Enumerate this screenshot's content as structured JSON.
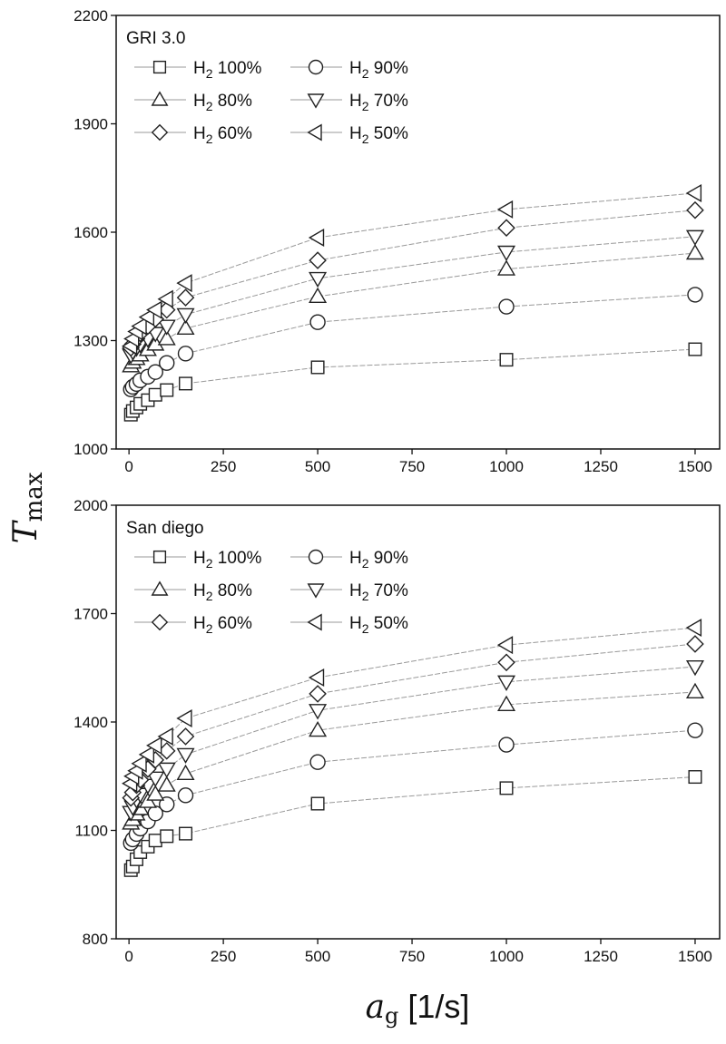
{
  "chart_data": [
    {
      "type": "scatter",
      "title": "GRI 3.0",
      "xlim": [
        -34,
        1565
      ],
      "ylim": [
        1000,
        2200
      ],
      "xticks": [
        0,
        250,
        500,
        750,
        1000,
        1250,
        1500
      ],
      "yticks": [
        1000,
        1300,
        1600,
        1900,
        2200
      ],
      "grid": false,
      "legend_placement": "top-left",
      "x": [
        5,
        10,
        20,
        30,
        50,
        70,
        100,
        150,
        500,
        1000,
        1500
      ],
      "series": [
        {
          "name": "H2 100%",
          "marker": "square",
          "values": [
            1095,
            1105,
            1115,
            1125,
            1135,
            1150,
            1163,
            1181,
            1226,
            1247,
            1276
          ]
        },
        {
          "name": "H2 90%",
          "marker": "circle",
          "values": [
            1165,
            1172,
            1180,
            1190,
            1200,
            1213,
            1238,
            1264,
            1351,
            1394,
            1427
          ]
        },
        {
          "name": "H2 80%",
          "marker": "triangle-up",
          "values": [
            1230,
            1240,
            1250,
            1260,
            1275,
            1290,
            1305,
            1334,
            1422,
            1498,
            1542
          ]
        },
        {
          "name": "H2 70%",
          "marker": "triangle-down",
          "values": [
            1260,
            1270,
            1280,
            1290,
            1305,
            1320,
            1340,
            1372,
            1472,
            1545,
            1588
          ]
        },
        {
          "name": "H2 60%",
          "marker": "diamond",
          "values": [
            1280,
            1290,
            1305,
            1320,
            1340,
            1360,
            1385,
            1419,
            1522,
            1612,
            1661
          ]
        },
        {
          "name": "H2 50%",
          "marker": "triangle-left",
          "values": [
            1285,
            1305,
            1325,
            1340,
            1365,
            1385,
            1415,
            1459,
            1585,
            1663,
            1708
          ]
        }
      ]
    },
    {
      "type": "scatter",
      "title": "San diego",
      "xlim": [
        -34,
        1565
      ],
      "ylim": [
        800,
        2000
      ],
      "xticks": [
        0,
        250,
        500,
        750,
        1000,
        1250,
        1500
      ],
      "yticks": [
        800,
        1100,
        1400,
        1700,
        2000
      ],
      "grid": false,
      "legend_placement": "top-left",
      "x": [
        5,
        10,
        20,
        30,
        50,
        70,
        100,
        150,
        500,
        1000,
        1500
      ],
      "series": [
        {
          "name": "H2 100%",
          "marker": "square",
          "values": [
            990,
            1000,
            1020,
            1040,
            1055,
            1072,
            1084,
            1091,
            1174,
            1217,
            1248
          ]
        },
        {
          "name": "H2 90%",
          "marker": "circle",
          "values": [
            1065,
            1075,
            1090,
            1105,
            1125,
            1147,
            1172,
            1197,
            1289,
            1337,
            1377
          ]
        },
        {
          "name": "H2 80%",
          "marker": "triangle-up",
          "values": [
            1120,
            1130,
            1145,
            1160,
            1180,
            1200,
            1225,
            1257,
            1377,
            1448,
            1483
          ]
        },
        {
          "name": "H2 70%",
          "marker": "triangle-down",
          "values": [
            1150,
            1165,
            1185,
            1200,
            1225,
            1245,
            1270,
            1310,
            1432,
            1511,
            1553
          ]
        },
        {
          "name": "H2 60%",
          "marker": "diamond",
          "values": [
            1190,
            1205,
            1225,
            1240,
            1270,
            1295,
            1320,
            1360,
            1478,
            1565,
            1616
          ]
        },
        {
          "name": "H2 50%",
          "marker": "triangle-left",
          "values": [
            1230,
            1250,
            1265,
            1285,
            1310,
            1335,
            1360,
            1410,
            1523,
            1613,
            1661
          ]
        }
      ]
    }
  ],
  "axes": {
    "ylabel_main": "T",
    "ylabel_sub": "max",
    "xlabel_main": "a",
    "xlabel_sub": "g",
    "xlabel_unit": " [1/s]"
  },
  "colors": {
    "marker_stroke": "#222222",
    "line": "#999999",
    "axis": "#111111"
  }
}
